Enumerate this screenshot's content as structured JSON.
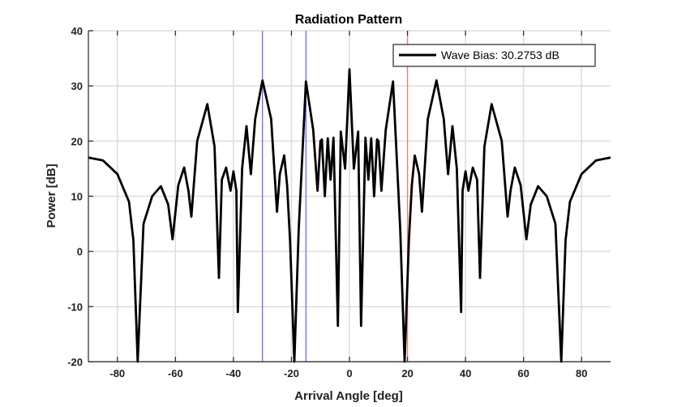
{
  "chart_data": {
    "type": "line",
    "title": "Radiation Pattern",
    "xlabel": "Arrival Angle [deg]",
    "ylabel": "Power [dB]",
    "xlim": [
      -90,
      90
    ],
    "ylim": [
      -20,
      40
    ],
    "xticks": [
      -80,
      -60,
      -40,
      -20,
      0,
      20,
      40,
      60,
      80
    ],
    "yticks": [
      -20,
      -10,
      0,
      10,
      20,
      30,
      40
    ],
    "grid": true,
    "legend_location": "top-right",
    "series": [
      {
        "name": "Wave Bias: 30.2753 dB",
        "color": "#000000",
        "x": [
          -90,
          -85,
          -80,
          -76,
          -74.5,
          -73,
          -71,
          -68,
          -65,
          -62.5,
          -61,
          -59,
          -57,
          -55.5,
          -54.5,
          -52.5,
          -49,
          -46.5,
          -45,
          -44,
          -42.5,
          -41,
          -40,
          -39,
          -38.5,
          -37,
          -35.5,
          -34,
          -32.5,
          -30,
          -27,
          -25,
          -24,
          -22.5,
          -21.5,
          -20.5,
          -19,
          -17.5,
          -15,
          -12.5,
          -11,
          -10,
          -9.5,
          -8.5,
          -7.5,
          -6.5,
          -5.5,
          -4,
          -3,
          -1.5,
          0,
          1.5,
          3,
          4,
          5.5,
          6.5,
          7.5,
          8.5,
          9.5,
          10,
          11,
          12.5,
          15,
          17.5,
          19,
          20.5,
          21.5,
          22.5,
          24,
          25,
          27,
          30,
          32.5,
          34,
          35.5,
          37,
          38.5,
          39,
          40,
          41,
          42.5,
          44,
          45,
          46.5,
          49,
          52.5,
          54.5,
          55.5,
          57,
          59,
          61,
          62.5,
          65,
          68,
          71,
          73,
          74.5,
          76,
          80,
          85,
          90
        ],
        "values": [
          17,
          16.5,
          14,
          9,
          2,
          -20,
          5,
          10,
          11.8,
          8.5,
          2.2,
          12,
          15.2,
          11,
          6.3,
          20,
          26.7,
          19,
          -4.8,
          13,
          15.2,
          11,
          14.5,
          11,
          -11,
          15,
          22.7,
          14,
          24,
          31,
          24,
          7.2,
          14,
          17.4,
          12,
          2,
          -20,
          4,
          30.8,
          22,
          11,
          20,
          20.3,
          10,
          20.5,
          13,
          20.6,
          -13.5,
          21.7,
          15,
          33,
          15,
          21.7,
          -13.5,
          20.6,
          13,
          20.5,
          10,
          20.3,
          20,
          11,
          22,
          30.8,
          4,
          -20,
          2,
          12,
          17.4,
          14,
          7.2,
          24,
          31,
          24,
          14,
          22.7,
          15,
          -11,
          11,
          14.5,
          11,
          15.2,
          13,
          -4.8,
          19,
          26.7,
          20,
          6.3,
          11,
          15.2,
          12,
          2.2,
          8.5,
          11.8,
          10,
          5,
          -20,
          2,
          9,
          14,
          16.5,
          17
        ]
      }
    ],
    "vertical_lines": [
      {
        "x": -30,
        "color": "#6a6afa"
      },
      {
        "x": -15,
        "color": "#6a6afa"
      },
      {
        "x": 20,
        "color": "#e08080"
      }
    ]
  }
}
